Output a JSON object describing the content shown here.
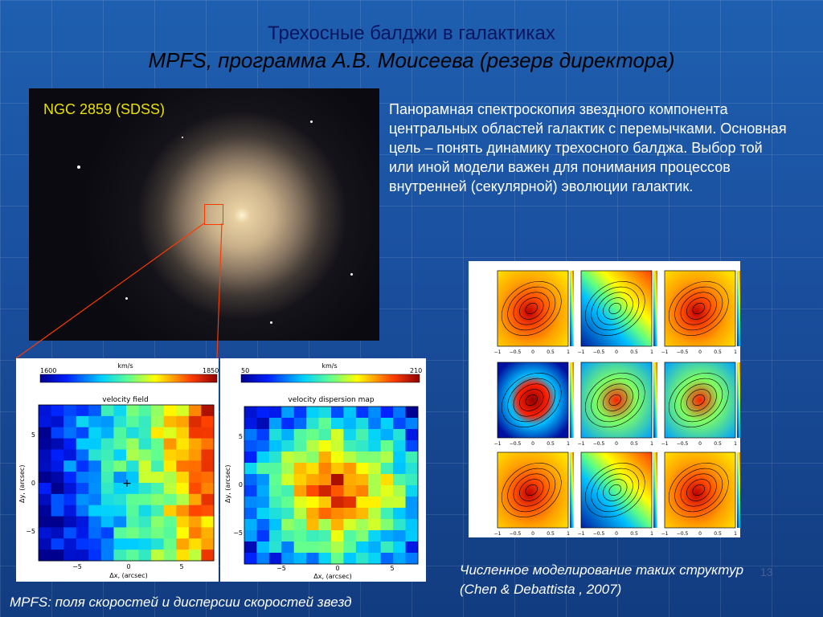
{
  "header": {
    "title": "Трехосные балджи в галактиках",
    "subtitle": "MPFS, программа А.В. Моисеева (резерв директора)"
  },
  "image": {
    "label": "NGC 2859  (SDSS)"
  },
  "description": "Панорамная спектроскопия звездного компонента центральных областей галактик с перемычками. Основная цель – понять динамику трехосного балджа. Выбор той или иной модели важен для понимания процессов внутренней (секулярной) эволюции галактик.",
  "velocity_map": {
    "unit": "km/s",
    "min": "1600",
    "max": "1850",
    "title": "velocity field",
    "xlabel": "Δx, (arcsec)",
    "ylabel": "Δy, (arcsec)",
    "ticks": [
      "−5",
      "0",
      "5"
    ]
  },
  "dispersion_map": {
    "unit": "km/s",
    "min": "50",
    "max": "210",
    "title": "velocity dispersion map",
    "xlabel": "Δx, (arcsec)",
    "ylabel": "Δy, (arcsec)",
    "ticks": [
      "−5",
      "0",
      "5"
    ]
  },
  "model_panels": {
    "ticks": [
      "−1",
      "−0.5",
      "0",
      "0.5",
      "1"
    ]
  },
  "captions": {
    "right_1": "Численное моделирование таких структур",
    "right_2": "(Chen & Debattista , 2007)",
    "left": "MPFS: поля скоростей и дисперсии скоростей звезд",
    "page": "13"
  },
  "colors": {
    "title": "#0a1560",
    "galaxy_label": "#e8e000",
    "box": "#ff3a00"
  }
}
